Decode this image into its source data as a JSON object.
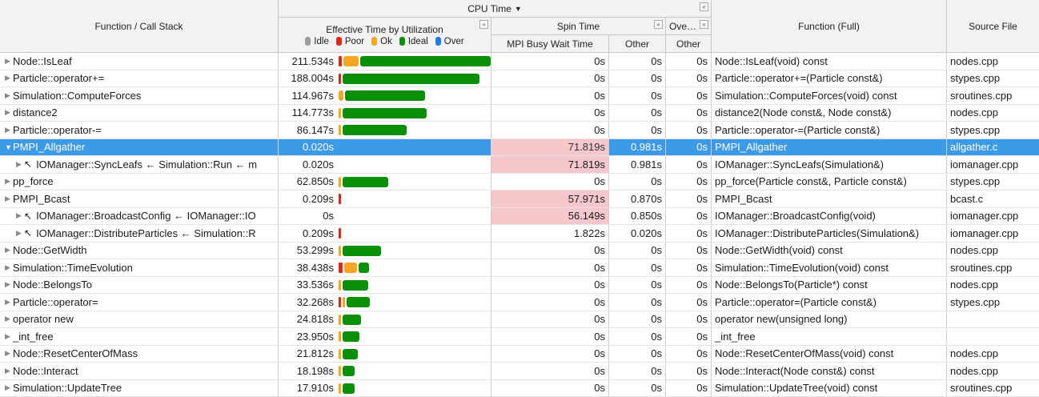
{
  "headers": {
    "function_call_stack": "Function / Call Stack",
    "cpu_time": "CPU Time",
    "cpu_time_sort_icon": "sort-descending-icon",
    "effective_time": "Effective Time by Utilization",
    "spin_time": "Spin Time",
    "overhead_time": "Ove…",
    "mpi_busy_wait": "MPI Busy Wait Time",
    "other_spin": "Other",
    "other_overhead": "Other",
    "function_full": "Function (Full)",
    "source_file": "Source File",
    "collapse_glyph": "«",
    "expand_glyph": "»"
  },
  "legend": [
    {
      "label": "Idle",
      "color": "#9e9e9e"
    },
    {
      "label": "Poor",
      "color": "#e32619"
    },
    {
      "label": "Ok",
      "color": "#f5a623"
    },
    {
      "label": "Ideal",
      "color": "#0a8f08"
    },
    {
      "label": "Over",
      "color": "#1f7fe0"
    }
  ],
  "rows": [
    {
      "tri": "▶",
      "indent": false,
      "arrow": "",
      "func": "Node::IsLeaf",
      "eff": "211.534s",
      "bar": {
        "poor": 0.02,
        "ok": 0.1,
        "ideal": 0.86
      },
      "mpi": "0s",
      "hot": false,
      "oth1": "0s",
      "oth2": "0s",
      "full": "Node::IsLeaf(void) const",
      "src": "nodes.cpp",
      "selected": false
    },
    {
      "tri": "▶",
      "indent": false,
      "arrow": "",
      "func": "Particle::operator+=",
      "eff": "188.004s",
      "bar": {
        "poor": 0.012,
        "ok": 0,
        "ideal": 0.9
      },
      "mpi": "0s",
      "hot": false,
      "oth1": "0s",
      "oth2": "0s",
      "full": "Particle::operator+=(Particle const&)",
      "src": "stypes.cpp",
      "selected": false
    },
    {
      "tri": "▶",
      "indent": false,
      "arrow": "",
      "func": "Simulation::ComputeForces",
      "eff": "114.967s",
      "bar": {
        "poor": 0,
        "ok": 0.03,
        "ideal": 0.53
      },
      "mpi": "0s",
      "hot": false,
      "oth1": "0s",
      "oth2": "0s",
      "full": "Simulation::ComputeForces(void) const",
      "src": "sroutines.cpp",
      "selected": false
    },
    {
      "tri": "▶",
      "indent": false,
      "arrow": "",
      "func": "distance2",
      "eff": "114.773s",
      "bar": {
        "poor": 0,
        "ok": 0.015,
        "ideal": 0.55
      },
      "mpi": "0s",
      "hot": false,
      "oth1": "0s",
      "oth2": "0s",
      "full": "distance2(Node const&, Node const&)",
      "src": "nodes.cpp",
      "selected": false
    },
    {
      "tri": "▶",
      "indent": false,
      "arrow": "",
      "func": "Particle::operator-=",
      "eff": "86.147s",
      "bar": {
        "poor": 0,
        "ok": 0.005,
        "ideal": 0.42
      },
      "mpi": "0s",
      "hot": false,
      "oth1": "0s",
      "oth2": "0s",
      "full": "Particle::operator-=(Particle const&)",
      "src": "stypes.cpp",
      "selected": false
    },
    {
      "tri": "▼",
      "indent": false,
      "arrow": "",
      "func": "PMPI_Allgather",
      "eff": "0.020s",
      "bar": {
        "poor": 0,
        "ok": 0,
        "ideal": 0
      },
      "mpi": "71.819s",
      "hot": true,
      "oth1": "0.981s",
      "oth2": "0s",
      "full": "PMPI_Allgather",
      "src": "allgather.c",
      "selected": true
    },
    {
      "tri": "▶",
      "indent": true,
      "arrow": "↖",
      "func": "IOManager::SyncLeafs ← Simulation::Run ← m",
      "eff": "0.020s",
      "bar": {
        "poor": 0,
        "ok": 0,
        "ideal": 0
      },
      "mpi": "71.819s",
      "hot": true,
      "oth1": "0.981s",
      "oth2": "0s",
      "full": "IOManager::SyncLeafs(Simulation&)",
      "src": "iomanager.cpp",
      "selected": false
    },
    {
      "tri": "▶",
      "indent": false,
      "arrow": "",
      "func": "pp_force",
      "eff": "62.850s",
      "bar": {
        "poor": 0,
        "ok": 0.005,
        "ideal": 0.3
      },
      "mpi": "0s",
      "hot": false,
      "oth1": "0s",
      "oth2": "0s",
      "full": "pp_force(Particle const&, Particle const&)",
      "src": "stypes.cpp",
      "selected": false
    },
    {
      "tri": "▶",
      "indent": false,
      "arrow": "",
      "func": "PMPI_Bcast",
      "eff": "0.209s",
      "bar": {
        "poor": 0.006,
        "ok": 0,
        "ideal": 0
      },
      "mpi": "57.971s",
      "hot": true,
      "oth1": "0.870s",
      "oth2": "0s",
      "full": "PMPI_Bcast",
      "src": "bcast.c",
      "selected": false
    },
    {
      "tri": "▶",
      "indent": true,
      "arrow": "↖",
      "func": "IOManager::BroadcastConfig ← IOManager::IO",
      "eff": "0s",
      "bar": {
        "poor": 0,
        "ok": 0,
        "ideal": 0
      },
      "mpi": "56.149s",
      "hot": true,
      "oth1": "0.850s",
      "oth2": "0s",
      "full": "IOManager::BroadcastConfig(void)",
      "src": "iomanager.cpp",
      "selected": false
    },
    {
      "tri": "▶",
      "indent": true,
      "arrow": "↖",
      "func": "IOManager::DistributeParticles ← Simulation::R",
      "eff": "0.209s",
      "bar": {
        "poor": 0.006,
        "ok": 0,
        "ideal": 0
      },
      "mpi": "1.822s",
      "hot": false,
      "oth1": "0.020s",
      "oth2": "0s",
      "full": "IOManager::DistributeParticles(Simulation&)",
      "src": "iomanager.cpp",
      "selected": false
    },
    {
      "tri": "▶",
      "indent": false,
      "arrow": "",
      "func": "Node::GetWidth",
      "eff": "53.299s",
      "bar": {
        "poor": 0,
        "ok": 0.005,
        "ideal": 0.25
      },
      "mpi": "0s",
      "hot": false,
      "oth1": "0s",
      "oth2": "0s",
      "full": "Node::GetWidth(void) const",
      "src": "nodes.cpp",
      "selected": false
    },
    {
      "tri": "▶",
      "indent": false,
      "arrow": "",
      "func": "Simulation::TimeEvolution",
      "eff": "38.438s",
      "bar": {
        "poor": 0.025,
        "ok": 0.085,
        "ideal": 0.07
      },
      "mpi": "0s",
      "hot": false,
      "oth1": "0s",
      "oth2": "0s",
      "full": "Simulation::TimeEvolution(void) const",
      "src": "sroutines.cpp",
      "selected": false
    },
    {
      "tri": "▶",
      "indent": false,
      "arrow": "",
      "func": "Node::BelongsTo",
      "eff": "33.536s",
      "bar": {
        "poor": 0,
        "ok": 0.005,
        "ideal": 0.17
      },
      "mpi": "0s",
      "hot": false,
      "oth1": "0s",
      "oth2": "0s",
      "full": "Node::BelongsTo(Particle*) const",
      "src": "nodes.cpp",
      "selected": false
    },
    {
      "tri": "▶",
      "indent": false,
      "arrow": "",
      "func": "Particle::operator=",
      "eff": "32.268s",
      "bar": {
        "poor": 0.006,
        "ok": 0.008,
        "ideal": 0.15
      },
      "mpi": "0s",
      "hot": false,
      "oth1": "0s",
      "oth2": "0s",
      "full": "Particle::operator=(Particle const&)",
      "src": "stypes.cpp",
      "selected": false
    },
    {
      "tri": "▶",
      "indent": false,
      "arrow": "",
      "func": "operator new",
      "eff": "24.818s",
      "bar": {
        "poor": 0,
        "ok": 0.005,
        "ideal": 0.12
      },
      "mpi": "0s",
      "hot": false,
      "oth1": "0s",
      "oth2": "0s",
      "full": "operator new(unsigned long)",
      "src": "",
      "selected": false
    },
    {
      "tri": "▶",
      "indent": false,
      "arrow": "",
      "func": "_int_free",
      "eff": "23.950s",
      "bar": {
        "poor": 0,
        "ok": 0.005,
        "ideal": 0.11
      },
      "mpi": "0s",
      "hot": false,
      "oth1": "0s",
      "oth2": "0s",
      "full": "_int_free",
      "src": "",
      "selected": false
    },
    {
      "tri": "▶",
      "indent": false,
      "arrow": "",
      "func": "Node::ResetCenterOfMass",
      "eff": "21.812s",
      "bar": {
        "poor": 0,
        "ok": 0.005,
        "ideal": 0.1
      },
      "mpi": "0s",
      "hot": false,
      "oth1": "0s",
      "oth2": "0s",
      "full": "Node::ResetCenterOfMass(void) const",
      "src": "nodes.cpp",
      "selected": false
    },
    {
      "tri": "▶",
      "indent": false,
      "arrow": "",
      "func": "Node::Interact",
      "eff": "18.198s",
      "bar": {
        "poor": 0,
        "ok": 0.005,
        "ideal": 0.08
      },
      "mpi": "0s",
      "hot": false,
      "oth1": "0s",
      "oth2": "0s",
      "full": "Node::Interact(Node const&) const",
      "src": "nodes.cpp",
      "selected": false
    },
    {
      "tri": "▶",
      "indent": false,
      "arrow": "",
      "func": "Simulation::UpdateTree",
      "eff": "17.910s",
      "bar": {
        "poor": 0,
        "ok": 0.005,
        "ideal": 0.08
      },
      "mpi": "0s",
      "hot": false,
      "oth1": "0s",
      "oth2": "0s",
      "full": "Simulation::UpdateTree(void) const",
      "src": "sroutines.cpp",
      "selected": false
    }
  ]
}
